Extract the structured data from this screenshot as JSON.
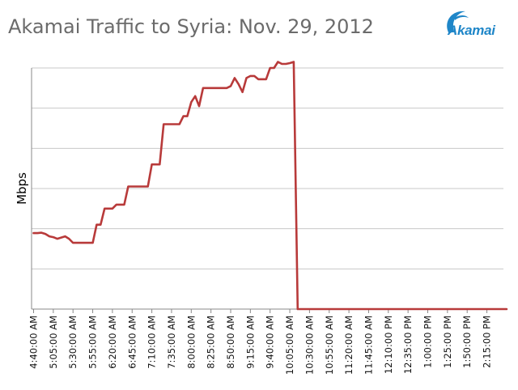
{
  "header": {
    "title": "Akamai Traffic to Syria: Nov. 29, 2012",
    "logo_text": "Akamai",
    "logo_color": "#1f86c8"
  },
  "chart_data": {
    "type": "line",
    "title": "Akamai Traffic to Syria: Nov. 29, 2012",
    "xlabel": "",
    "ylabel": "Mbps",
    "grid": true,
    "legend": "none",
    "line_color": "#b83a3a",
    "ylim": [
      0,
      6
    ],
    "x_tick_labels": [
      "4:40:00 AM",
      "5:05:00 AM",
      "5:30:00 AM",
      "5:55:00 AM",
      "6:20:00 AM",
      "6:45:00 AM",
      "7:10:00 AM",
      "7:35:00 AM",
      "8:00:00 AM",
      "8:25:00 AM",
      "8:50:00 AM",
      "9:15:00 AM",
      "9:40:00 AM",
      "10:05:00 AM",
      "10:30:00 AM",
      "10:55:00 AM",
      "11:20:00 AM",
      "11:45:00 AM",
      "12:10:00 PM",
      "12:35:00 PM",
      "1:00:00 PM",
      "1:25:00 PM",
      "1:50:00 PM",
      "2:15:00 PM"
    ],
    "series": [
      {
        "x": [
          "4:40 AM",
          "4:45 AM",
          "4:50 AM",
          "4:55 AM",
          "5:00 AM",
          "5:05 AM",
          "5:10 AM",
          "5:15 AM",
          "5:20 AM",
          "5:25 AM",
          "5:30 AM",
          "5:35 AM",
          "5:40 AM",
          "5:45 AM",
          "5:50 AM",
          "5:55 AM",
          "6:00 AM",
          "6:05 AM",
          "6:10 AM",
          "6:15 AM",
          "6:20 AM",
          "6:25 AM",
          "6:30 AM",
          "6:35 AM",
          "6:40 AM",
          "6:45 AM",
          "6:50 AM",
          "6:55 AM",
          "7:00 AM",
          "7:05 AM",
          "7:10 AM",
          "7:15 AM",
          "7:20 AM",
          "7:25 AM",
          "7:30 AM",
          "7:35 AM",
          "7:40 AM",
          "7:45 AM",
          "7:50 AM",
          "7:55 AM",
          "8:00 AM",
          "8:05 AM",
          "8:10 AM",
          "8:15 AM",
          "8:20 AM",
          "8:25 AM",
          "8:30 AM",
          "8:35 AM",
          "8:40 AM",
          "8:45 AM",
          "8:50 AM",
          "8:55 AM",
          "9:00 AM",
          "9:05 AM",
          "9:10 AM",
          "9:15 AM",
          "9:20 AM",
          "9:25 AM",
          "9:30 AM",
          "9:35 AM",
          "9:40 AM",
          "9:45 AM",
          "9:50 AM",
          "9:55 AM",
          "10:00 AM",
          "10:05 AM",
          "10:10 AM",
          "10:15 AM",
          "10:20 AM",
          "10:25 AM",
          "10:30 AM",
          "10:35 AM",
          "2:40 PM"
        ],
        "values": [
          1.89,
          1.89,
          1.9,
          1.87,
          1.81,
          1.79,
          1.75,
          1.78,
          1.81,
          1.75,
          1.65,
          1.65,
          1.65,
          1.65,
          1.65,
          1.65,
          2.1,
          2.1,
          2.5,
          2.5,
          2.5,
          2.6,
          2.6,
          2.6,
          3.05,
          3.05,
          3.05,
          3.05,
          3.05,
          3.05,
          3.6,
          3.6,
          3.6,
          4.6,
          4.6,
          4.6,
          4.6,
          4.6,
          4.8,
          4.8,
          5.15,
          5.3,
          5.05,
          5.5,
          5.5,
          5.5,
          5.5,
          5.5,
          5.5,
          5.5,
          5.55,
          5.75,
          5.6,
          5.4,
          5.75,
          5.8,
          5.8,
          5.72,
          5.72,
          5.72,
          6.0,
          6.0,
          6.15,
          6.1,
          6.1,
          6.12,
          6.15,
          0,
          0,
          0,
          0,
          0,
          0
        ]
      }
    ]
  }
}
